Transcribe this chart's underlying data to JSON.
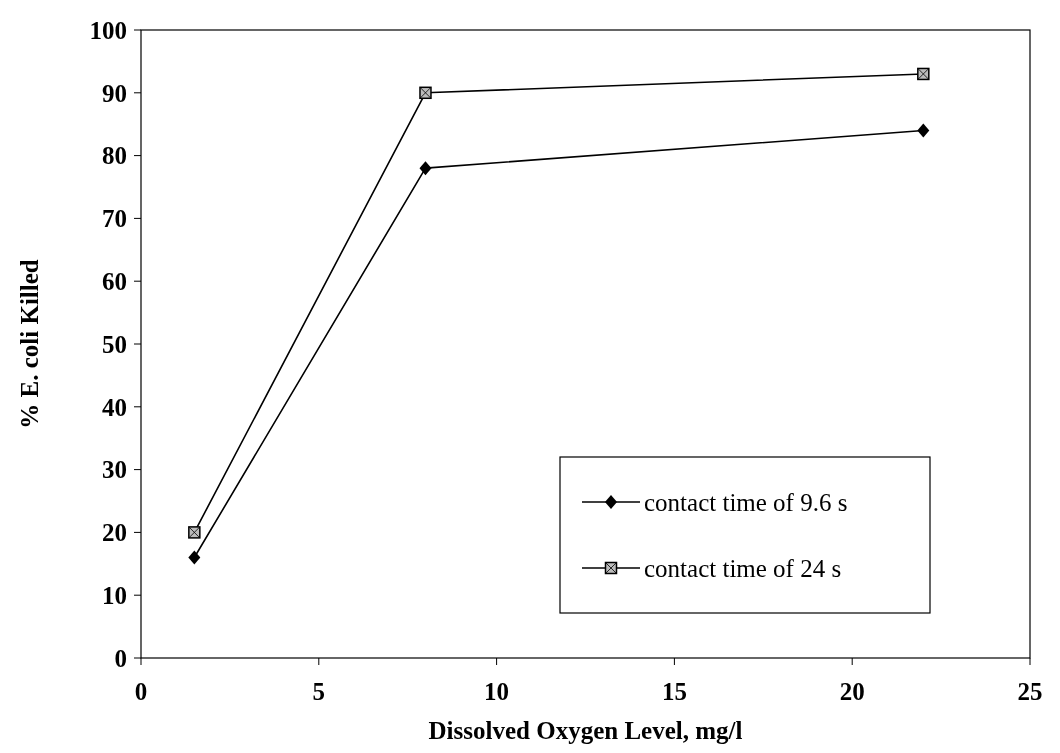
{
  "chart_data": {
    "type": "line",
    "xlabel": "Dissolved Oxygen Level, mg/l",
    "ylabel": "% E. coli Killed",
    "xlim": [
      0,
      25
    ],
    "xticks": [
      0,
      5,
      10,
      15,
      20,
      25
    ],
    "ylim": [
      0,
      100
    ],
    "yticks": [
      0,
      10,
      20,
      30,
      40,
      50,
      60,
      70,
      80,
      90,
      100
    ],
    "grid": false,
    "legend": "bottom right",
    "line_style": "solid",
    "x": [
      1.5,
      8,
      22
    ],
    "series": [
      {
        "name": "contact time of 9.6 s",
        "color": "#000000",
        "marker": "diamond",
        "values": [
          16,
          78,
          84
        ]
      },
      {
        "name": "contact time of 24 s",
        "color": "#000000",
        "marker": "square",
        "values": [
          20,
          90,
          93
        ]
      }
    ]
  }
}
